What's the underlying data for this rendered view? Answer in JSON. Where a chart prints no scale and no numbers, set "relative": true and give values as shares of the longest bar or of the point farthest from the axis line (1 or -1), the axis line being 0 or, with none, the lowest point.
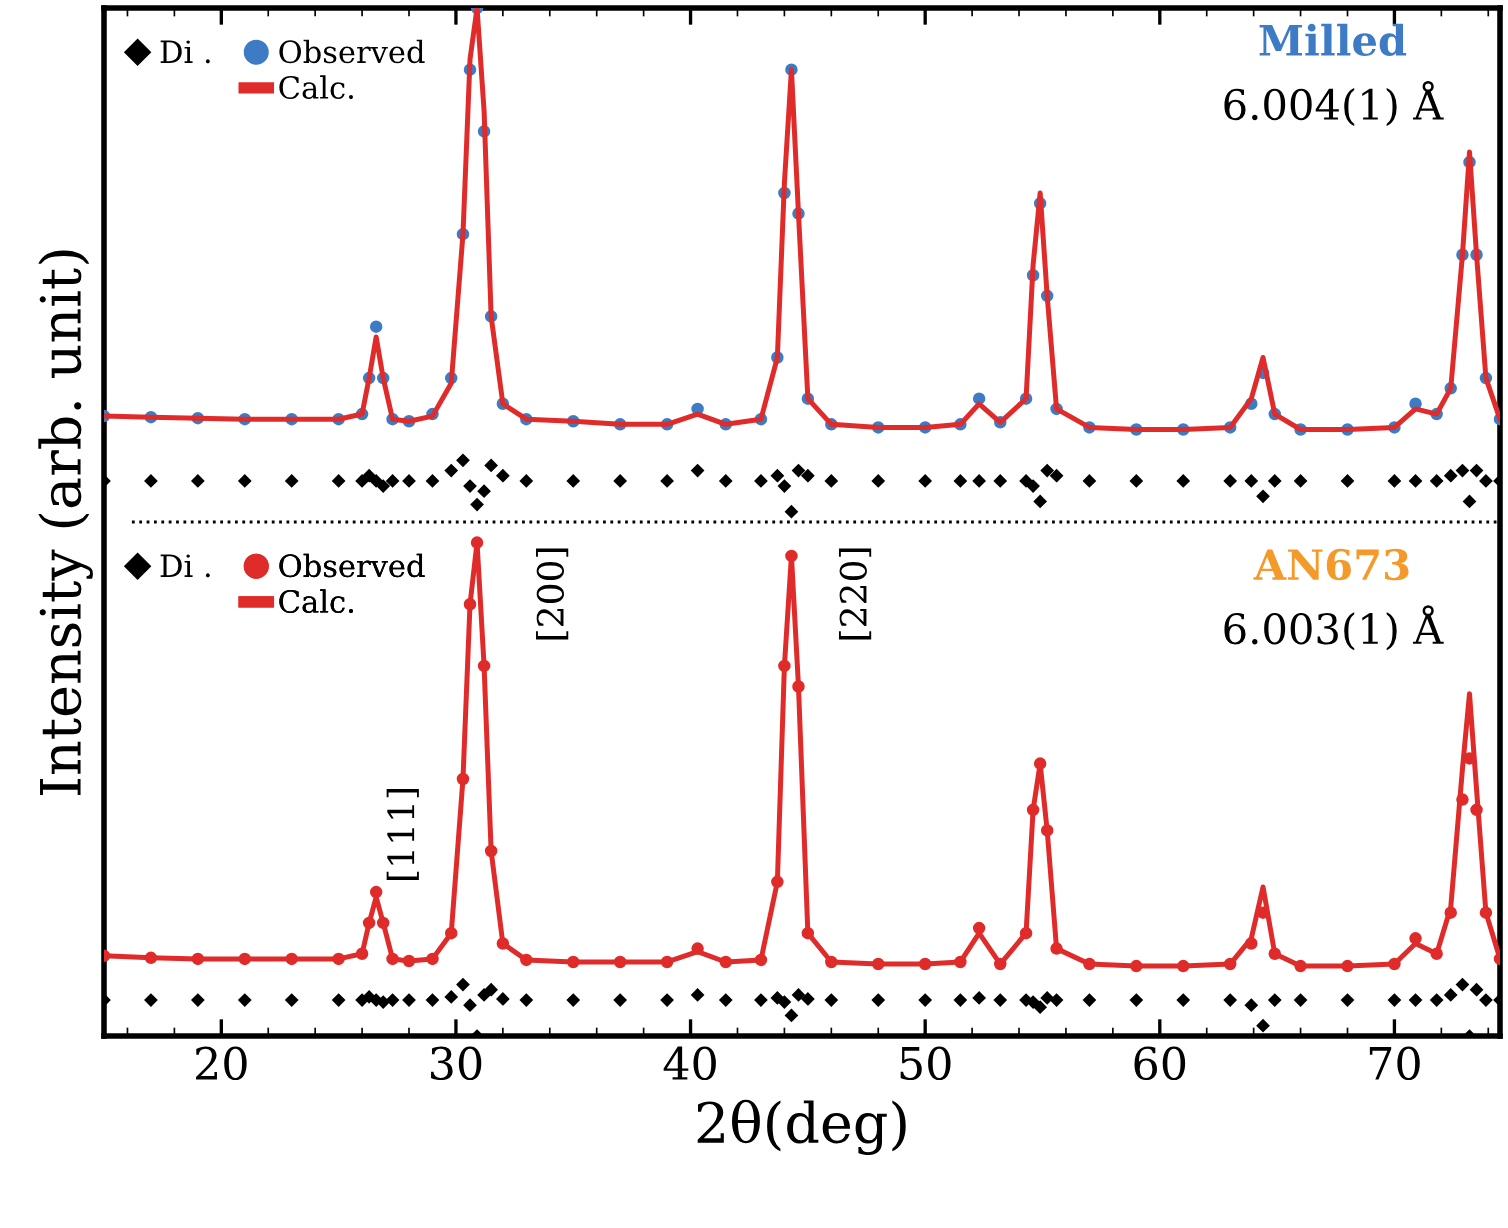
{
  "chart_data": {
    "type": "line",
    "relative": true,
    "xlabel": "2θ(deg)",
    "ylabel": "Intensity (arb. unit)",
    "xlim": [
      15,
      74.5
    ],
    "xticks": [
      20,
      30,
      40,
      50,
      60,
      70
    ],
    "tick_labels": "x",
    "grid": false,
    "legend": "top left",
    "x": [
      15,
      17,
      19,
      21,
      23,
      25,
      26,
      26.3,
      26.6,
      26.9,
      27.3,
      28,
      29,
      29.8,
      30.3,
      30.6,
      30.9,
      31.2,
      31.5,
      32,
      33,
      35,
      37,
      39,
      40.3,
      41.5,
      43,
      43.7,
      44.0,
      44.3,
      44.6,
      45.0,
      46,
      48,
      50,
      51.5,
      52.3,
      53.2,
      54.3,
      54.6,
      54.9,
      55.2,
      55.6,
      57,
      59,
      61,
      63,
      63.9,
      64.4,
      64.9,
      66,
      68,
      70,
      70.9,
      71.8,
      72.4,
      72.9,
      73.2,
      73.5,
      73.9,
      74.5
    ],
    "series": [
      {
        "name": "Di .",
        "type": "scatter",
        "marker": "diamond",
        "color": "#000000",
        "values": [
          0.54,
          0.54,
          0.54,
          0.54,
          0.54,
          0.54,
          0.54,
          0.545,
          0.54,
          0.535,
          0.54,
          0.54,
          0.54,
          0.55,
          0.56,
          0.535,
          0.517,
          0.53,
          0.555,
          0.545,
          0.54,
          0.54,
          0.54,
          0.54,
          0.55,
          0.54,
          0.54,
          0.545,
          0.535,
          0.51,
          0.55,
          0.545,
          0.54,
          0.54,
          0.54,
          0.54,
          0.54,
          0.54,
          0.54,
          0.535,
          0.52,
          0.55,
          0.545,
          0.54,
          0.54,
          0.54,
          0.54,
          0.54,
          0.525,
          0.54,
          0.54,
          0.54,
          0.54,
          0.54,
          0.54,
          0.545,
          0.55,
          0.52,
          0.55,
          0.54,
          0.54
        ]
      },
      {
        "name": "Observed",
        "type": "scatter",
        "marker": "circle",
        "color": "#3d7cc4",
        "values": [
          0.603,
          0.602,
          0.601,
          0.6,
          0.6,
          0.6,
          0.605,
          0.64,
          0.69,
          0.64,
          0.6,
          0.598,
          0.605,
          0.64,
          0.78,
          0.94,
          1.0,
          0.88,
          0.7,
          0.615,
          0.6,
          0.598,
          0.595,
          0.595,
          0.61,
          0.595,
          0.6,
          0.66,
          0.82,
          0.94,
          0.8,
          0.62,
          0.595,
          0.592,
          0.592,
          0.595,
          0.62,
          0.597,
          0.62,
          0.74,
          0.81,
          0.72,
          0.61,
          0.592,
          0.59,
          0.59,
          0.592,
          0.615,
          0.645,
          0.605,
          0.59,
          0.59,
          0.592,
          0.615,
          0.605,
          0.63,
          0.76,
          0.85,
          0.76,
          0.64,
          0.6
        ]
      },
      {
        "name": "Calc.",
        "color": "#e02b2b",
        "values": [
          0.603,
          0.602,
          0.601,
          0.6,
          0.6,
          0.6,
          0.605,
          0.64,
          0.68,
          0.64,
          0.6,
          0.598,
          0.603,
          0.635,
          0.78,
          0.95,
          1.0,
          0.9,
          0.7,
          0.615,
          0.6,
          0.598,
          0.595,
          0.595,
          0.605,
          0.595,
          0.6,
          0.66,
          0.83,
          0.94,
          0.8,
          0.62,
          0.595,
          0.592,
          0.592,
          0.595,
          0.615,
          0.597,
          0.62,
          0.75,
          0.82,
          0.72,
          0.61,
          0.592,
          0.59,
          0.59,
          0.592,
          0.62,
          0.66,
          0.605,
          0.59,
          0.59,
          0.592,
          0.61,
          0.605,
          0.63,
          0.76,
          0.86,
          0.76,
          0.64,
          0.6
        ]
      },
      {
        "name": "Di .",
        "type": "scatter",
        "marker": "diamond",
        "color": "#000000",
        "values": [
          0.035,
          0.035,
          0.035,
          0.035,
          0.035,
          0.035,
          0.035,
          0.038,
          0.035,
          0.033,
          0.035,
          0.035,
          0.035,
          0.038,
          0.05,
          0.03,
          0.0,
          0.04,
          0.045,
          0.036,
          0.035,
          0.035,
          0.035,
          0.035,
          0.04,
          0.035,
          0.035,
          0.037,
          0.033,
          0.02,
          0.04,
          0.036,
          0.035,
          0.035,
          0.035,
          0.035,
          0.037,
          0.035,
          0.035,
          0.033,
          0.028,
          0.037,
          0.035,
          0.035,
          0.035,
          0.035,
          0.035,
          0.03,
          0.01,
          0.035,
          0.035,
          0.035,
          0.035,
          0.035,
          0.035,
          0.04,
          0.05,
          0.0,
          0.045,
          0.035,
          0.035
        ]
      },
      {
        "name": "Observed",
        "type": "scatter",
        "marker": "circle",
        "color": "#e02b2b",
        "values": [
          0.078,
          0.076,
          0.075,
          0.075,
          0.075,
          0.075,
          0.08,
          0.11,
          0.14,
          0.11,
          0.075,
          0.073,
          0.075,
          0.1,
          0.25,
          0.42,
          0.48,
          0.36,
          0.18,
          0.09,
          0.074,
          0.072,
          0.072,
          0.072,
          0.085,
          0.072,
          0.074,
          0.15,
          0.36,
          0.467,
          0.34,
          0.1,
          0.072,
          0.07,
          0.07,
          0.072,
          0.105,
          0.07,
          0.1,
          0.22,
          0.265,
          0.2,
          0.085,
          0.07,
          0.068,
          0.068,
          0.07,
          0.09,
          0.12,
          0.08,
          0.068,
          0.068,
          0.07,
          0.095,
          0.08,
          0.12,
          0.23,
          0.27,
          0.22,
          0.12,
          0.075
        ]
      },
      {
        "name": "Calc.",
        "color": "#e02b2b",
        "values": [
          0.078,
          0.076,
          0.075,
          0.075,
          0.075,
          0.075,
          0.08,
          0.11,
          0.135,
          0.11,
          0.075,
          0.073,
          0.075,
          0.1,
          0.25,
          0.42,
          0.48,
          0.36,
          0.18,
          0.09,
          0.074,
          0.072,
          0.072,
          0.072,
          0.082,
          0.072,
          0.074,
          0.15,
          0.36,
          0.467,
          0.34,
          0.1,
          0.072,
          0.07,
          0.07,
          0.072,
          0.1,
          0.07,
          0.1,
          0.22,
          0.265,
          0.2,
          0.085,
          0.07,
          0.068,
          0.068,
          0.07,
          0.095,
          0.145,
          0.08,
          0.068,
          0.068,
          0.07,
          0.09,
          0.08,
          0.125,
          0.26,
          0.333,
          0.24,
          0.12,
          0.075
        ]
      }
    ],
    "ref_lines": [
      {
        "axis": "y",
        "value": 0.5,
        "color": "#000000",
        "line_style": "dotted"
      }
    ],
    "annotations": [
      "Milled",
      "6.004(1) Å",
      "AN673",
      "6.003(1) Å",
      "[111]",
      "[200]",
      "[220]"
    ]
  }
}
